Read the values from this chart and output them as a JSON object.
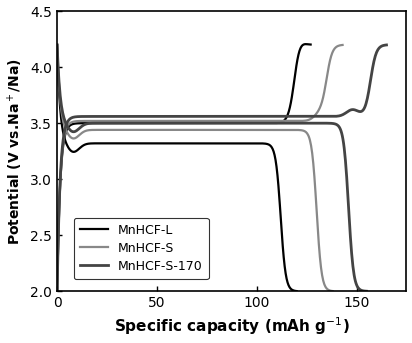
{
  "title": "",
  "xlabel": "Specific capacity (mAh g⁻¹)",
  "ylabel": "Potential (V vs.Na⁺/Na)",
  "xlim": [
    0,
    175
  ],
  "ylim": [
    2.0,
    4.5
  ],
  "xticks": [
    0,
    50,
    100,
    150
  ],
  "yticks": [
    2.0,
    2.5,
    3.0,
    3.5,
    4.0,
    4.5
  ],
  "legend": [
    "MnHCF-L",
    "MnHCF-S",
    "MnHCF-S-170"
  ],
  "colors": [
    "#000000",
    "#888888",
    "#444444"
  ],
  "linewidths": [
    1.6,
    1.6,
    2.0
  ],
  "background_color": "#ffffff"
}
